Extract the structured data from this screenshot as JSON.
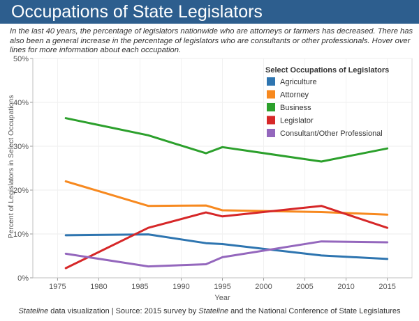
{
  "header": {
    "title": "Occupations of State Legislators",
    "description": "In the last 40 years, the percentage of legislators nationwide who are attorneys or farmers has decreased. There has also been a general increase in the percentage of legislators who are consultants or other professionals. Hover over lines for more information about each occupation."
  },
  "footer": {
    "part1": "Stateline",
    "part2": " data visualization | Source: 2015 survey by ",
    "part3": "Stateline",
    "part4": " and the National Conference of State Legislatures"
  },
  "chart_data": {
    "type": "line",
    "xlabel": "Year",
    "ylabel": "Percent of Legislators in Select Occupations",
    "xlim": [
      1972,
      2018
    ],
    "ylim": [
      0,
      50
    ],
    "x_ticks": [
      1975,
      1980,
      1985,
      1990,
      1995,
      2000,
      2005,
      2010,
      2015
    ],
    "y_ticks": [
      0,
      10,
      20,
      30,
      40,
      50
    ],
    "y_tick_labels": [
      "0%",
      "10%",
      "20%",
      "30%",
      "40%",
      "50%"
    ],
    "grid": true,
    "legend": {
      "title": "Select Occupations of Legislators",
      "placement": "top-right"
    },
    "series": [
      {
        "name": "Agriculture",
        "color": "#2e75b0",
        "points": [
          [
            1976,
            9.7
          ],
          [
            1986,
            9.9
          ],
          [
            1993,
            7.9
          ],
          [
            1995,
            7.7
          ],
          [
            2007,
            5.1
          ],
          [
            2015,
            4.3
          ]
        ]
      },
      {
        "name": "Attorney",
        "color": "#f7891f",
        "points": [
          [
            1976,
            22.0
          ],
          [
            1986,
            16.4
          ],
          [
            1993,
            16.5
          ],
          [
            1995,
            15.4
          ],
          [
            2007,
            15.0
          ],
          [
            2015,
            14.4
          ]
        ]
      },
      {
        "name": "Business",
        "color": "#2ca02c",
        "points": [
          [
            1976,
            36.4
          ],
          [
            1986,
            32.5
          ],
          [
            1993,
            28.4
          ],
          [
            1995,
            29.8
          ],
          [
            2007,
            26.5
          ],
          [
            2015,
            29.5
          ]
        ]
      },
      {
        "name": "Legislator",
        "color": "#d62728",
        "points": [
          [
            1976,
            2.2
          ],
          [
            1986,
            11.4
          ],
          [
            1993,
            14.9
          ],
          [
            1995,
            14.0
          ],
          [
            2007,
            16.4
          ],
          [
            2015,
            11.4
          ]
        ]
      },
      {
        "name": "Consultant/Other Professional",
        "color": "#9467bd",
        "points": [
          [
            1976,
            5.5
          ],
          [
            1986,
            2.6
          ],
          [
            1993,
            3.1
          ],
          [
            1995,
            4.7
          ],
          [
            2007,
            8.3
          ],
          [
            2015,
            8.1
          ]
        ]
      }
    ]
  }
}
